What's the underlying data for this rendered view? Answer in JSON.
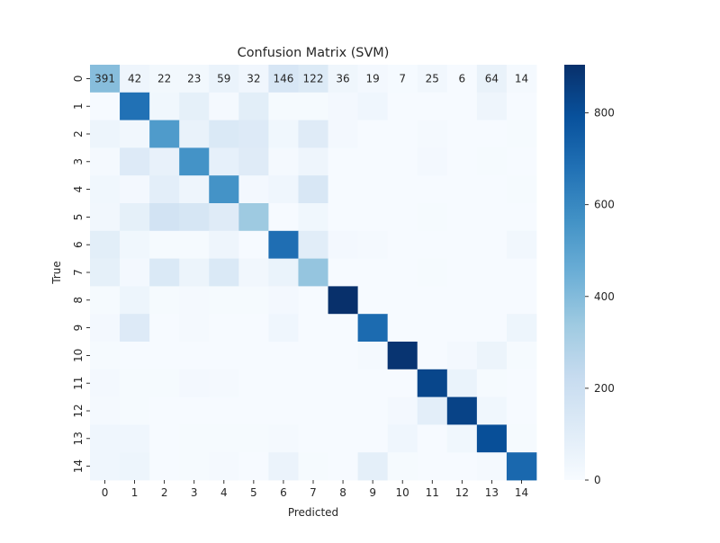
{
  "chart_data": {
    "type": "heatmap",
    "title": "Confusion Matrix (SVM)",
    "xlabel": "Predicted",
    "ylabel": "True",
    "x_categories": [
      "0",
      "1",
      "2",
      "3",
      "4",
      "5",
      "6",
      "7",
      "8",
      "9",
      "10",
      "11",
      "12",
      "13",
      "14"
    ],
    "y_categories": [
      "0",
      "1",
      "2",
      "3",
      "4",
      "5",
      "6",
      "7",
      "8",
      "9",
      "10",
      "11",
      "12",
      "13",
      "14"
    ],
    "colormap": "Blues",
    "value_range": [
      0,
      905
    ],
    "colorbar_ticks": [
      0,
      200,
      400,
      600,
      800
    ],
    "annotated_row": 0,
    "matrix": [
      [
        391,
        42,
        22,
        23,
        59,
        32,
        146,
        122,
        36,
        19,
        7,
        25,
        6,
        64,
        14
      ],
      [
        5,
        680,
        30,
        80,
        15,
        95,
        10,
        10,
        20,
        35,
        5,
        5,
        5,
        40,
        5
      ],
      [
        45,
        25,
        530,
        65,
        130,
        120,
        30,
        110,
        20,
        5,
        5,
        15,
        5,
        5,
        10
      ],
      [
        15,
        120,
        70,
        560,
        75,
        110,
        15,
        40,
        5,
        5,
        5,
        20,
        5,
        10,
        5
      ],
      [
        30,
        20,
        90,
        40,
        560,
        20,
        35,
        140,
        5,
        5,
        5,
        5,
        5,
        5,
        10
      ],
      [
        25,
        80,
        170,
        150,
        110,
        340,
        5,
        30,
        5,
        5,
        5,
        10,
        5,
        5,
        5
      ],
      [
        95,
        30,
        10,
        10,
        40,
        5,
        690,
        100,
        20,
        15,
        5,
        5,
        5,
        5,
        25
      ],
      [
        80,
        20,
        130,
        50,
        130,
        25,
        60,
        360,
        5,
        5,
        5,
        10,
        5,
        5,
        5
      ],
      [
        10,
        45,
        10,
        15,
        10,
        10,
        20,
        5,
        905,
        5,
        5,
        5,
        5,
        5,
        5
      ],
      [
        20,
        120,
        5,
        15,
        5,
        5,
        35,
        5,
        5,
        700,
        5,
        5,
        5,
        5,
        45
      ],
      [
        10,
        5,
        5,
        5,
        5,
        5,
        5,
        5,
        5,
        15,
        890,
        5,
        20,
        50,
        10
      ],
      [
        20,
        10,
        10,
        20,
        15,
        5,
        5,
        5,
        5,
        5,
        5,
        830,
        60,
        10,
        5
      ],
      [
        15,
        10,
        5,
        5,
        5,
        5,
        5,
        5,
        5,
        5,
        20,
        90,
        840,
        30,
        5
      ],
      [
        35,
        35,
        5,
        10,
        10,
        10,
        15,
        5,
        5,
        5,
        35,
        5,
        30,
        800,
        10
      ],
      [
        35,
        45,
        5,
        10,
        15,
        5,
        55,
        10,
        5,
        85,
        10,
        5,
        5,
        15,
        710
      ]
    ]
  }
}
